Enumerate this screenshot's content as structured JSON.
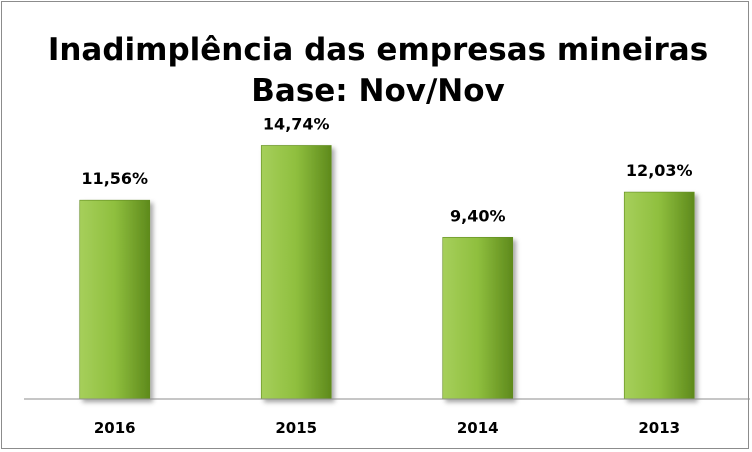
{
  "chart_data": {
    "type": "bar",
    "title": "Inadimplência das empresas mineiras",
    "subtitle": "Base: Nov/Nov",
    "categories": [
      "2016",
      "2015",
      "2014",
      "2013"
    ],
    "values": [
      11.56,
      14.74,
      9.4,
      12.03
    ],
    "value_labels": [
      "11,56%",
      "14,74%",
      "9,40%",
      "12,03%"
    ],
    "xlabel": "",
    "ylabel": "",
    "ylim": [
      0,
      16
    ],
    "grid": false,
    "legend": "none",
    "colors": {
      "bar_light": "#a6cf5b",
      "bar_mid": "#8fbf3e",
      "bar_dark": "#5e8a1c",
      "axis": "#8c8c8c"
    }
  }
}
